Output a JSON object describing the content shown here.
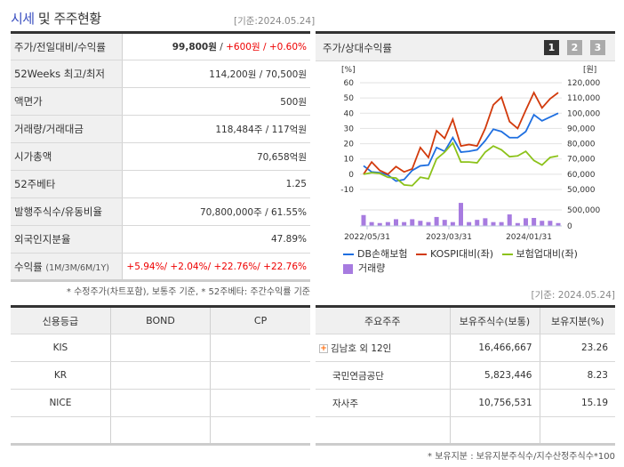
{
  "header": {
    "title_highlight": "시세",
    "title_rest": " 및 주주현황",
    "base_date": "[기준:2024.05.24]"
  },
  "info": [
    {
      "label": "주가/전일대비/수익률",
      "price": "99,800원",
      "sep": " / ",
      "change": "+600원",
      "sep2": " / ",
      "rate": "+0.60%"
    },
    {
      "label": "52Weeks 최고/최저",
      "value": "114,200원 / 70,500원"
    },
    {
      "label": "액면가",
      "value": "500원"
    },
    {
      "label": "거래량/거래대금",
      "value": "118,484주 / 117억원"
    },
    {
      "label": "시가총액",
      "value": "70,658억원"
    },
    {
      "label": "52주베타",
      "value": "1.25"
    },
    {
      "label": "발행주식수/유동비율",
      "value": "70,800,000주 / 61.55%"
    },
    {
      "label": "외국인지분율",
      "value": "47.89%"
    },
    {
      "label": "수익률",
      "label_sub": "(1M/3M/6M/1Y)",
      "value": "+5.94%/ +2.04%/ +22.76%/ +22.76%"
    }
  ],
  "info_note": "* 수정주가(차트포함), 보통주 기준, * 52주베타: 주간수익률 기준",
  "chart_panel": {
    "title": "주가/상대수익률",
    "pages": [
      "1",
      "2",
      "3"
    ],
    "active_page": "1"
  },
  "chart_data": {
    "type": "line",
    "left_unit": "[%]",
    "right_unit": "[원]",
    "yticks_left": [
      "60",
      "50",
      "40",
      "30",
      "20",
      "10",
      "0",
      "-10"
    ],
    "yticks_right": [
      "120,000",
      "110,000",
      "100,000",
      "90,000",
      "80,000",
      "70,000",
      "60,000",
      "50,000"
    ],
    "ylim": [
      -10,
      60
    ],
    "volume_ticks": [
      "500,000",
      "0"
    ],
    "xticks": [
      "2022/05/31",
      "2023/03/31",
      "2024/01/31"
    ],
    "series": [
      {
        "name": "DB손해보험",
        "color": "#1f6fe0",
        "values": [
          5.5,
          1.5,
          1,
          -0.5,
          -4.5,
          -3.5,
          2.5,
          5.5,
          6,
          17.5,
          15,
          24,
          14.5,
          15,
          16,
          22,
          29.5,
          28,
          24,
          24,
          28,
          39,
          35,
          37.5,
          40
        ]
      },
      {
        "name": "KOSPI대비(좌)",
        "color": "#d23a0c",
        "values": [
          0,
          8,
          2.5,
          0,
          5,
          1.5,
          3.5,
          17.5,
          11,
          28.5,
          23.5,
          36,
          18.5,
          19.5,
          18.5,
          30,
          45.5,
          50.5,
          34.5,
          30,
          42,
          53.5,
          43.5,
          49.5,
          53.5
        ]
      },
      {
        "name": "보험업대비(좌)",
        "color": "#8cc21a",
        "values": [
          0,
          1,
          0.5,
          -2,
          -2.5,
          -7,
          -7.5,
          -2,
          -3,
          10,
          14.5,
          20.5,
          8,
          8,
          7.5,
          14.5,
          18.5,
          16,
          11.5,
          12,
          15,
          9,
          6,
          11,
          12
        ]
      }
    ],
    "volume": {
      "name": "거래량",
      "color": "#a77be0",
      "values": [
        340000,
        120000,
        90000,
        120000,
        210000,
        120000,
        210000,
        160000,
        120000,
        280000,
        190000,
        120000,
        720000,
        120000,
        190000,
        240000,
        120000,
        120000,
        360000,
        90000,
        240000,
        250000,
        160000,
        160000,
        90000
      ]
    }
  },
  "credit": {
    "headers": [
      "신용등급",
      "BOND",
      "CP"
    ],
    "rows": [
      [
        "KIS",
        "",
        ""
      ],
      [
        "KR",
        "",
        ""
      ],
      [
        "NICE",
        "",
        ""
      ],
      [
        "",
        "",
        ""
      ]
    ]
  },
  "holders": {
    "base_date": "[기준: 2024.05.24]",
    "headers": [
      "주요주주",
      "보유주식수(보통)",
      "보유지분(%)"
    ],
    "rows": [
      [
        "김남호 외 12인",
        "16,466,667",
        "23.26"
      ],
      [
        "국민연금공단",
        "5,823,446",
        "8.23"
      ],
      [
        "자사주",
        "10,756,531",
        "15.19"
      ],
      [
        "",
        "",
        ""
      ]
    ],
    "note": "* 보유지분 : 보유지분주식수/지수산정주식수*100"
  }
}
